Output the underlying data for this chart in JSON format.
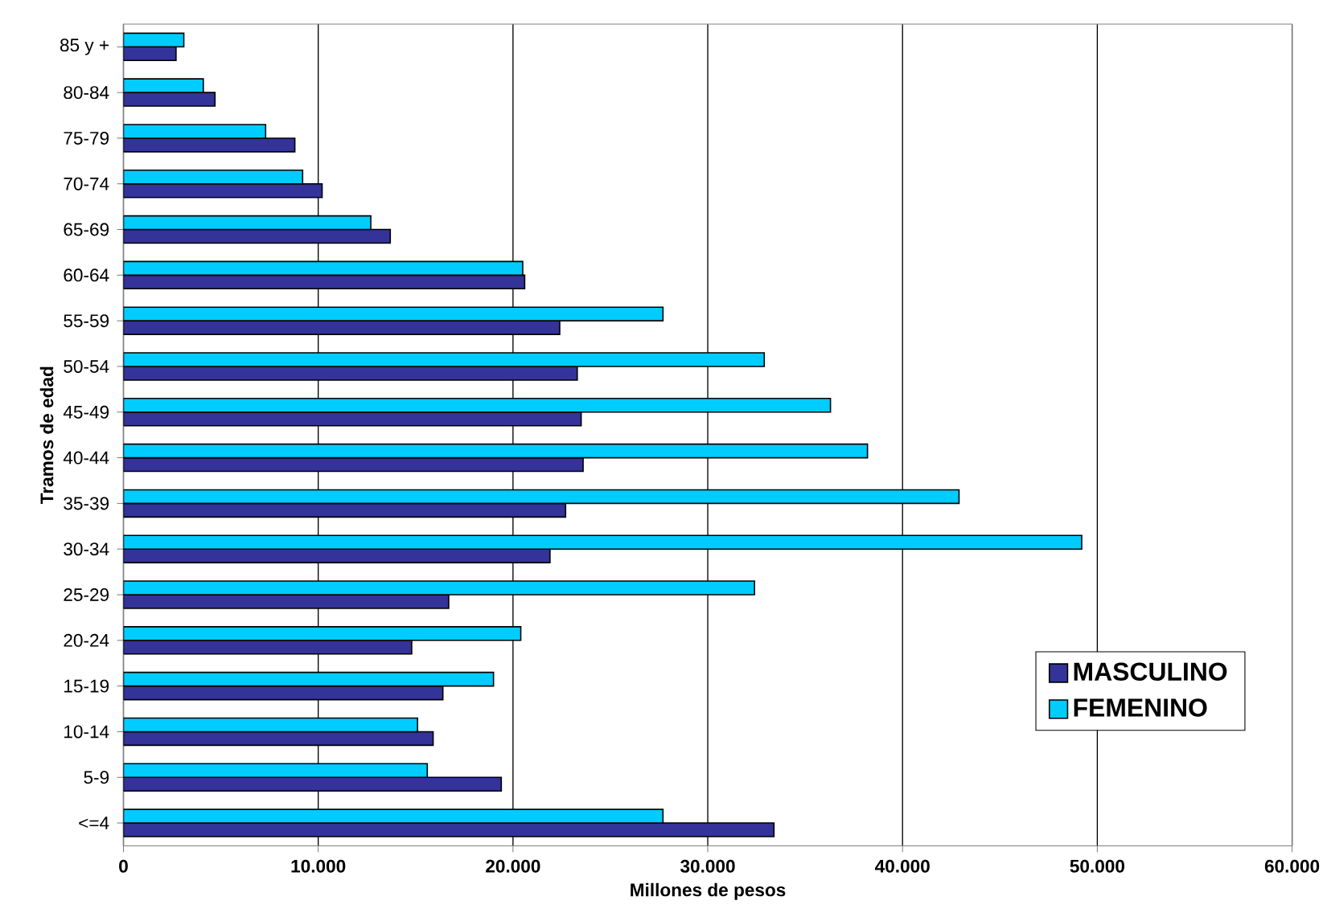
{
  "chart_data": {
    "type": "bar",
    "orientation": "horizontal",
    "xlabel": "Millones de pesos",
    "ylabel": "Tramos de edad",
    "categories": [
      "85 y +",
      "80-84",
      "75-79",
      "70-74",
      "65-69",
      "60-64",
      "55-59",
      "50-54",
      "45-49",
      "40-44",
      "35-39",
      "30-34",
      "25-29",
      "20-24",
      "15-19",
      "10-14",
      "5-9",
      "<=4"
    ],
    "series": [
      {
        "name": "MASCULINO",
        "color": "#333399",
        "values": [
          2700,
          4700,
          8800,
          10200,
          13700,
          20600,
          22400,
          23300,
          23500,
          23600,
          22700,
          21900,
          16700,
          14800,
          16400,
          15900,
          19400,
          33400
        ]
      },
      {
        "name": "FEMENINO",
        "color": "#00ccff",
        "values": [
          3100,
          4100,
          7300,
          9200,
          12700,
          20500,
          27700,
          32900,
          36300,
          38200,
          42900,
          49200,
          32400,
          20400,
          19000,
          15100,
          15600,
          27700
        ]
      }
    ],
    "xlim": [
      0,
      60000
    ],
    "xticks": [
      0,
      {
        "value": 10000,
        "label": "10.000"
      },
      {
        "value": 20000,
        "label": "20.000"
      },
      {
        "value": 30000,
        "label": "30.000"
      },
      {
        "value": 40000,
        "label": "40.000"
      },
      {
        "value": 50000,
        "label": "50.000"
      },
      {
        "value": 60000,
        "label": "60.000"
      }
    ],
    "grid": "x",
    "legend": "bottom right"
  }
}
